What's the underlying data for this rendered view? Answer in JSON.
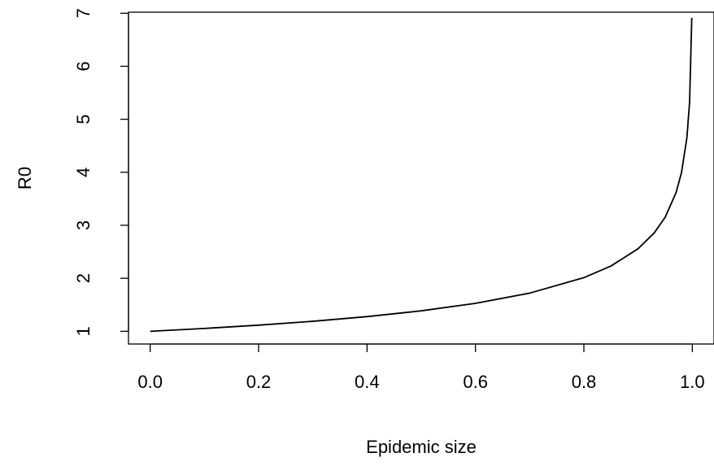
{
  "chart_data": {
    "type": "line",
    "title": "",
    "xlabel": "Epidemic size",
    "ylabel": "R0",
    "xlim": [
      -0.04,
      1.04
    ],
    "ylim": [
      0.76,
      7.02
    ],
    "x_ticks": [
      0.0,
      0.2,
      0.4,
      0.6,
      0.8,
      1.0
    ],
    "x_tick_labels": [
      "0.0",
      "0.2",
      "0.4",
      "0.6",
      "0.8",
      "1.0"
    ],
    "y_ticks": [
      1,
      2,
      3,
      4,
      5,
      6,
      7
    ],
    "y_tick_labels": [
      "1",
      "2",
      "3",
      "4",
      "5",
      "6",
      "7"
    ],
    "grid": false,
    "legend": "none",
    "series": [
      {
        "x": [
          0.0,
          0.1,
          0.2,
          0.3,
          0.4,
          0.5,
          0.6,
          0.7,
          0.8,
          0.85,
          0.9,
          0.93,
          0.95,
          0.97,
          0.98,
          0.99,
          0.995,
          0.999
        ],
        "y": [
          1.0,
          1.054,
          1.116,
          1.189,
          1.277,
          1.386,
          1.527,
          1.72,
          2.012,
          2.232,
          2.558,
          2.859,
          3.153,
          3.615,
          3.992,
          4.652,
          5.325,
          6.915
        ],
        "color": "#000000"
      }
    ]
  }
}
